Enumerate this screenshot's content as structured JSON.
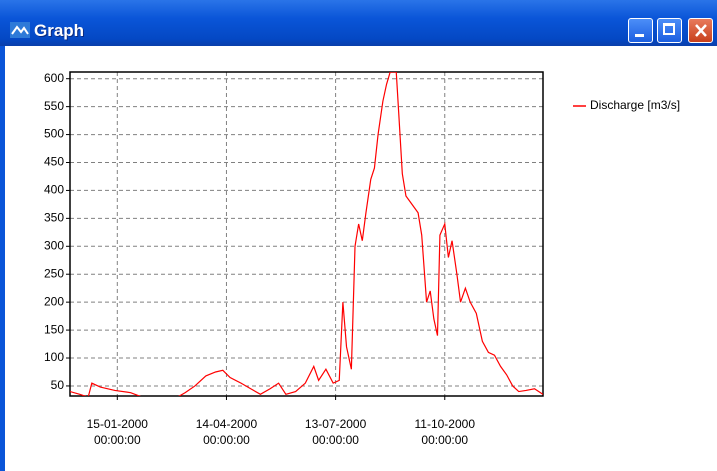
{
  "window": {
    "title": "Graph"
  },
  "chart_data": {
    "type": "line",
    "series": [
      {
        "name": "Discharge [m3/s]",
        "color": "#ff0000",
        "x": [
          "1999-12-07",
          "1999-12-15",
          "1999-12-22",
          "1999-12-25",
          "2000-01-01",
          "2000-01-13",
          "2000-01-26",
          "2000-02-07",
          "2000-02-15",
          "2000-02-24",
          "2000-03-03",
          "2000-03-11",
          "2000-03-19",
          "2000-03-28",
          "2000-04-05",
          "2000-04-11",
          "2000-04-17",
          "2000-04-26",
          "2000-05-04",
          "2000-05-12",
          "2000-05-20",
          "2000-05-27",
          "2000-06-02",
          "2000-06-10",
          "2000-06-18",
          "2000-06-25",
          "2000-06-29",
          "2000-07-05",
          "2000-07-11",
          "2000-07-16",
          "2000-07-19",
          "2000-07-22",
          "2000-07-26",
          "2000-07-29",
          "2000-08-01",
          "2000-08-04",
          "2000-08-07",
          "2000-08-11",
          "2000-08-14",
          "2000-08-17",
          "2000-08-21",
          "2000-08-24",
          "2000-08-27",
          "2000-09-01",
          "2000-09-03",
          "2000-09-06",
          "2000-09-09",
          "2000-09-14",
          "2000-09-19",
          "2000-09-22",
          "2000-09-26",
          "2000-09-29",
          "2000-10-02",
          "2000-10-05",
          "2000-10-07",
          "2000-10-11",
          "2000-10-14",
          "2000-10-17",
          "2000-10-21",
          "2000-10-24",
          "2000-10-28",
          "2000-11-01",
          "2000-11-06",
          "2000-11-11",
          "2000-11-16",
          "2000-11-21",
          "2000-11-26",
          "2000-12-01",
          "2000-12-06",
          "2000-12-11",
          "2000-12-17",
          "2000-12-24",
          "2000-12-31"
        ],
        "values": [
          40,
          35,
          30,
          55,
          48,
          42,
          38,
          28,
          20,
          25,
          28,
          38,
          50,
          68,
          75,
          78,
          65,
          55,
          45,
          35,
          45,
          55,
          35,
          40,
          55,
          85,
          60,
          80,
          55,
          60,
          200,
          120,
          80,
          300,
          340,
          310,
          360,
          420,
          440,
          500,
          560,
          590,
          612,
          612,
          540,
          430,
          390,
          375,
          360,
          320,
          200,
          220,
          170,
          140,
          320,
          340,
          280,
          310,
          250,
          200,
          225,
          200,
          180,
          130,
          110,
          105,
          85,
          70,
          50,
          40,
          42,
          45,
          35
        ]
      }
    ],
    "xlim": [
      "1999-12-07",
      "2000-12-31"
    ],
    "xticks": [
      {
        "value": "2000-01-15",
        "label": "15-01-2000\n00:00:00"
      },
      {
        "value": "2000-04-14",
        "label": "14-04-2000\n00:00:00"
      },
      {
        "value": "2000-07-13",
        "label": "13-07-2000\n00:00:00"
      },
      {
        "value": "2000-10-11",
        "label": "11-10-2000\n00:00:00"
      }
    ],
    "ylim": [
      32,
      612
    ],
    "yticks": [
      50,
      100,
      150,
      200,
      250,
      300,
      350,
      400,
      450,
      500,
      550,
      600
    ],
    "grid": true,
    "legend": "right"
  }
}
